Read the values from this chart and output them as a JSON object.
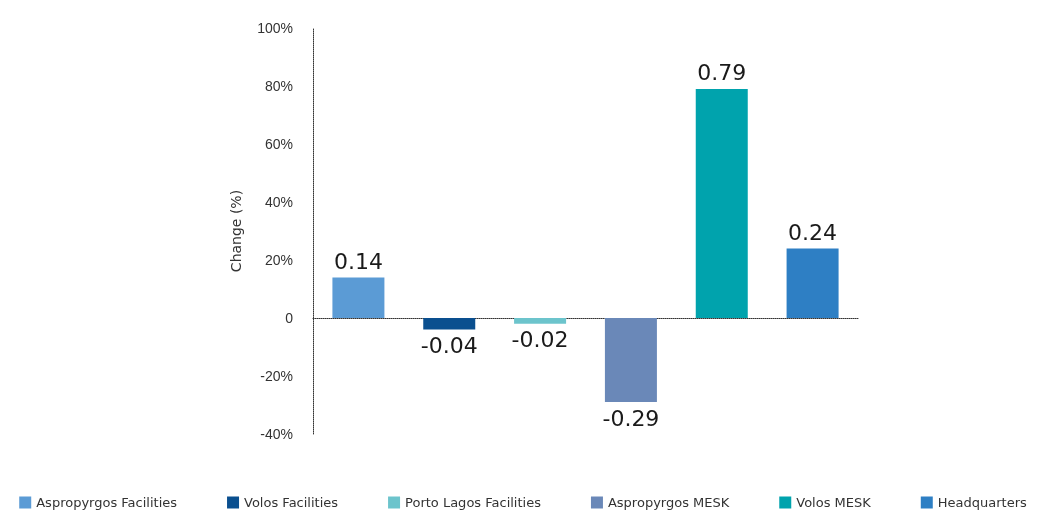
{
  "chart_data": {
    "type": "bar",
    "ylabel": "Change (%)",
    "categories": [
      null,
      null,
      null,
      null,
      null,
      null
    ],
    "series": [
      {
        "name": "Aspropyrgos Facilities",
        "color": "#5b9bd5",
        "values": [
          0.14,
          null,
          null,
          null,
          null,
          null
        ]
      },
      {
        "name": "Volos Facilities",
        "color": "#0a4f8f",
        "values": [
          null,
          -0.04,
          null,
          null,
          null,
          null
        ]
      },
      {
        "name": "Porto Lagos Facilities",
        "color": "#6cc4cc",
        "values": [
          null,
          null,
          -0.02,
          null,
          null,
          null
        ]
      },
      {
        "name": "Aspropyrgos MESK",
        "color": "#6a88b8",
        "values": [
          null,
          null,
          null,
          -0.29,
          null,
          null
        ]
      },
      {
        "name": "Volos MESK",
        "color": "#00a3ad",
        "values": [
          null,
          null,
          null,
          null,
          0.79,
          null
        ]
      },
      {
        "name": "Headquarters",
        "color": "#2e7fc4",
        "values": [
          null,
          null,
          null,
          null,
          null,
          0.24
        ]
      }
    ],
    "data_labels": true,
    "ylim": [
      -0.4,
      1
    ],
    "yticks": [
      {
        "value": -0.4,
        "label": "-40%"
      },
      {
        "value": -0.2,
        "label": "-20%"
      },
      {
        "value": 0,
        "label": "0"
      },
      {
        "value": 0.2,
        "label": "20%"
      },
      {
        "value": 0.4,
        "label": "40%"
      },
      {
        "value": 0.6,
        "label": "60%"
      },
      {
        "value": 0.8,
        "label": "80%"
      },
      {
        "value": 1,
        "label": "100%"
      }
    ],
    "legend": "bottom"
  }
}
